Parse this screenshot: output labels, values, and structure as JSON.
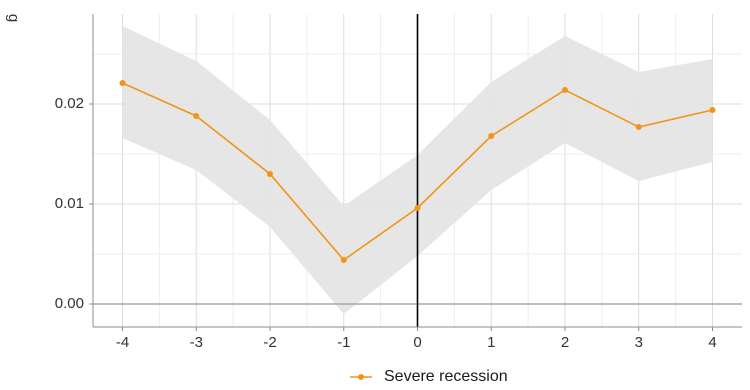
{
  "chart_data": {
    "type": "line",
    "title": "",
    "xlabel": "",
    "ylabel": "g",
    "x": [
      -4,
      -3,
      -2,
      -1,
      0,
      1,
      2,
      3,
      4
    ],
    "xlim": [
      -4.4,
      4.4
    ],
    "ylim": [
      -0.0023,
      0.029
    ],
    "x_ticks": [
      "-4",
      "-3",
      "-2",
      "-1",
      "0",
      "1",
      "2",
      "3",
      "4"
    ],
    "x_tick_values": [
      -4,
      -3,
      -2,
      -1,
      0,
      1,
      2,
      3,
      4
    ],
    "y_ticks": [
      "0.00",
      "0.01",
      "0.02"
    ],
    "y_tick_values": [
      0.0,
      0.01,
      0.02
    ],
    "grid": true,
    "reference_lines": {
      "vertical_at_x": 0,
      "horizontal_at_y": 0
    },
    "legend_position": "bottom",
    "series": [
      {
        "name": "Severe recession",
        "color": "#f39419",
        "values": [
          0.0221,
          0.0188,
          0.013,
          0.0044,
          0.0096,
          0.0168,
          0.0214,
          0.0177,
          0.0194
        ],
        "ci_lower": [
          0.0166,
          0.0134,
          0.0077,
          -0.001,
          0.0048,
          0.0114,
          0.0161,
          0.0123,
          0.0142
        ],
        "ci_upper": [
          0.0278,
          0.0243,
          0.0184,
          0.0098,
          0.0149,
          0.0222,
          0.0268,
          0.0232,
          0.0245
        ]
      }
    ],
    "band_color": "#e3e3e3"
  }
}
